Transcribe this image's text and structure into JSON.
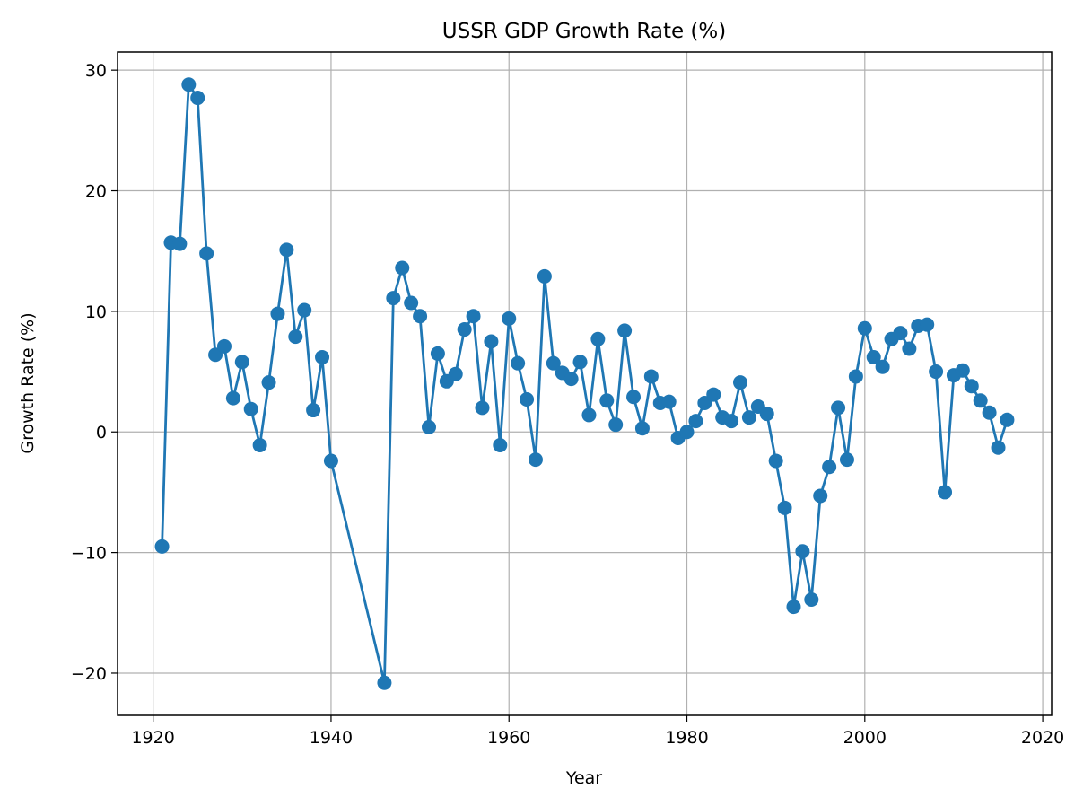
{
  "chart_data": {
    "type": "line",
    "title": "USSR GDP Growth Rate (%)",
    "xlabel": "Year",
    "ylabel": "Growth Rate (%)",
    "xlim": [
      1916,
      2021
    ],
    "ylim": [
      -23.5,
      31.5
    ],
    "xticks": [
      1920,
      1940,
      1960,
      1980,
      2000,
      2020
    ],
    "yticks": [
      -20,
      -10,
      0,
      10,
      20,
      30
    ],
    "ytick_labels": [
      "−20",
      "−10",
      "0",
      "10",
      "20",
      "30"
    ],
    "grid": true,
    "marker": "circle",
    "series": [
      {
        "color": "#1f77b4",
        "x": [
          1921,
          1922,
          1923,
          1924,
          1925,
          1926,
          1927,
          1928,
          1929,
          1930,
          1931,
          1932,
          1933,
          1934,
          1935,
          1936,
          1937,
          1938,
          1939,
          1940,
          1946,
          1947,
          1948,
          1949,
          1950,
          1951,
          1952,
          1953,
          1954,
          1955,
          1956,
          1957,
          1958,
          1959,
          1960,
          1961,
          1962,
          1963,
          1964,
          1965,
          1966,
          1967,
          1968,
          1969,
          1970,
          1971,
          1972,
          1973,
          1974,
          1975,
          1976,
          1977,
          1978,
          1979,
          1980,
          1981,
          1982,
          1983,
          1984,
          1985,
          1986,
          1987,
          1988,
          1989,
          1990,
          1991,
          1992,
          1993,
          1994,
          1995,
          1996,
          1997,
          1998,
          1999,
          2000,
          2001,
          2002,
          2003,
          2004,
          2005,
          2006,
          2007,
          2008,
          2009,
          2010,
          2011,
          2012,
          2013,
          2014,
          2015,
          2016
        ],
        "y": [
          -9.5,
          15.7,
          15.6,
          28.8,
          27.7,
          14.8,
          6.4,
          7.1,
          2.8,
          5.8,
          1.9,
          -1.1,
          4.1,
          9.8,
          15.1,
          7.9,
          10.1,
          1.8,
          6.2,
          -2.4,
          -20.8,
          11.1,
          13.6,
          10.7,
          9.6,
          0.4,
          6.5,
          4.2,
          4.8,
          8.5,
          9.6,
          2.0,
          7.5,
          -1.1,
          9.4,
          5.7,
          2.7,
          -2.3,
          12.9,
          5.7,
          4.9,
          4.4,
          5.8,
          1.4,
          7.7,
          2.6,
          0.6,
          8.4,
          2.9,
          0.3,
          4.6,
          2.4,
          2.5,
          -0.5,
          0.0,
          0.9,
          2.4,
          3.1,
          1.2,
          0.9,
          4.1,
          1.2,
          2.1,
          1.5,
          -2.4,
          -6.3,
          -14.5,
          -9.9,
          -13.9,
          -5.3,
          -2.9,
          2.0,
          -2.3,
          4.6,
          8.6,
          6.2,
          5.4,
          7.7,
          8.2,
          6.9,
          8.8,
          8.9,
          5.0,
          -5.0,
          4.7,
          5.1,
          3.8,
          2.6,
          1.6,
          -1.3,
          1.0
        ]
      }
    ]
  }
}
